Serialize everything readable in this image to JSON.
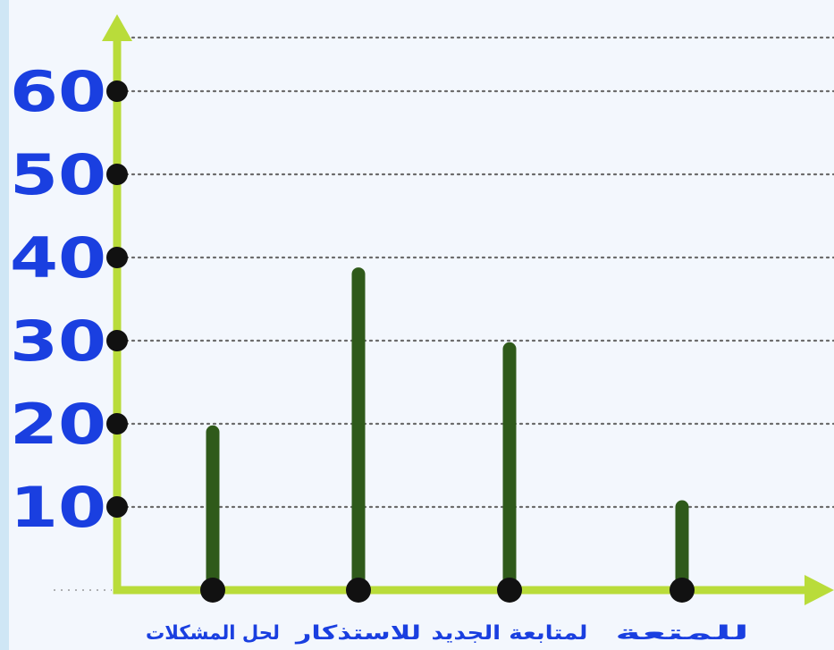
{
  "chart_data": {
    "type": "bar",
    "categories": [
      "لحل المشكلات",
      "للاستذكار",
      "لمتابعة الجديد",
      "للمتعة"
    ],
    "values": [
      19,
      38,
      29,
      10
    ],
    "yticks": [
      10,
      20,
      30,
      40,
      50,
      60
    ],
    "ylim": [
      0,
      64
    ],
    "grid": true,
    "colors": {
      "bars": "#2f5a1a",
      "axis": "#b9dc3a",
      "tick_labels": "#1a3fe0",
      "grid": "#6b6b6b",
      "background": "#f3f7fd"
    }
  }
}
